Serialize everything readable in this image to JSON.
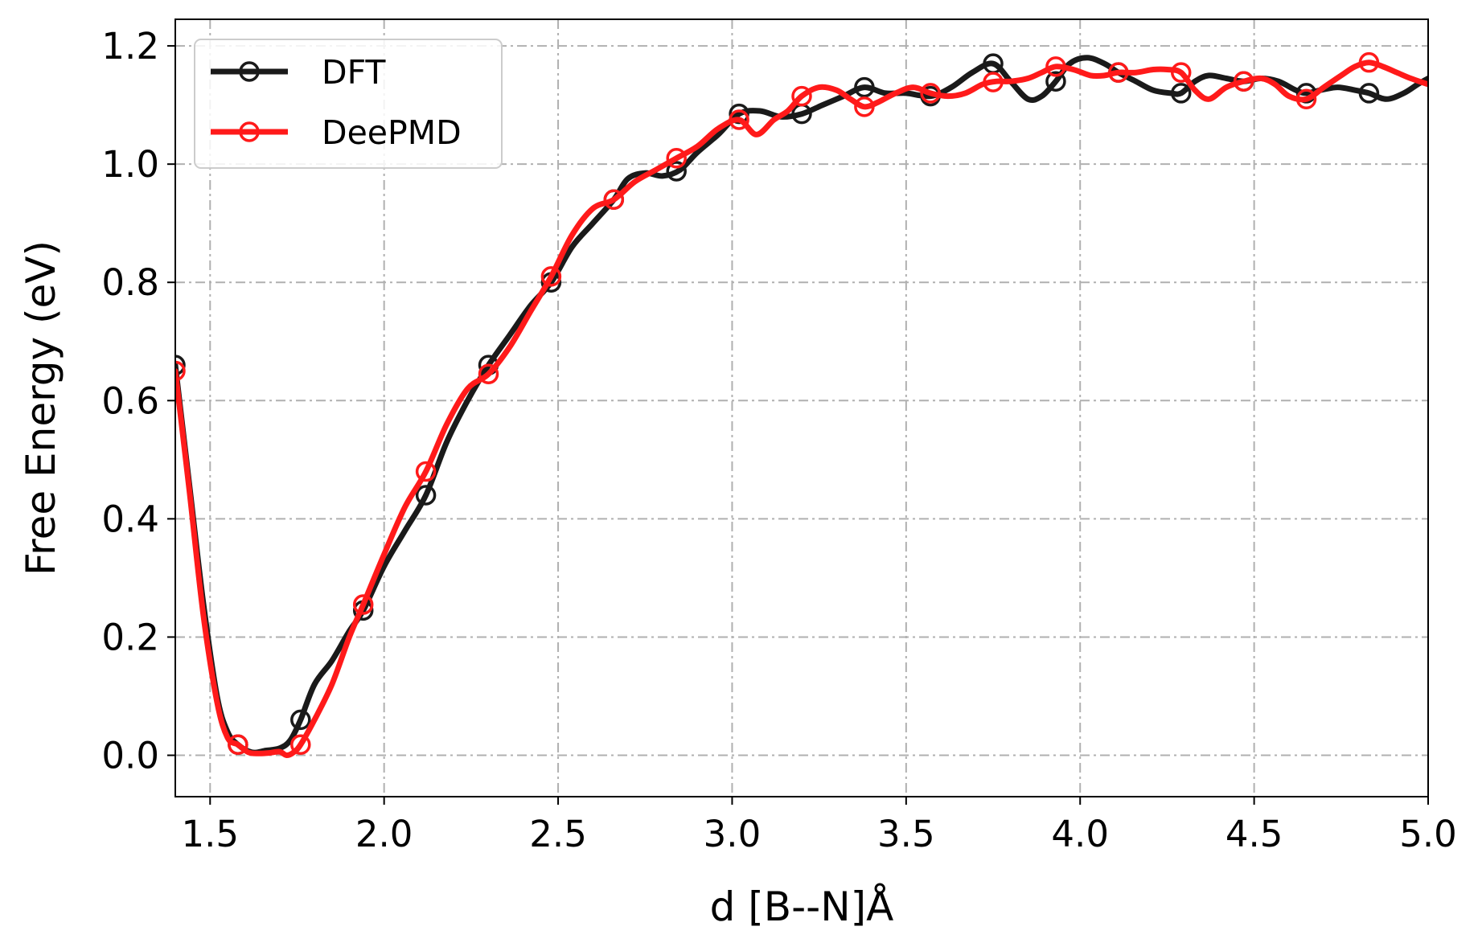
{
  "chart_data": {
    "type": "line",
    "xlabel": "d [B--N]Å",
    "ylabel": "Free Energy (eV)",
    "xlim": [
      1.4,
      5.0
    ],
    "ylim": [
      -0.07,
      1.245
    ],
    "x_ticks": [
      "1.5",
      "2.0",
      "2.5",
      "3.0",
      "3.5",
      "4.0",
      "4.5",
      "5.0"
    ],
    "y_ticks": [
      "0.0",
      "0.2",
      "0.4",
      "0.6",
      "0.8",
      "1.0",
      "1.2"
    ],
    "x_tick_values": [
      1.5,
      2.0,
      2.5,
      3.0,
      3.5,
      4.0,
      4.5,
      5.0
    ],
    "y_tick_values": [
      0.0,
      0.2,
      0.4,
      0.6,
      0.8,
      1.0,
      1.2
    ],
    "grid": true,
    "grid_style": "dash-dot",
    "legend_position": "top-left",
    "series": [
      {
        "name": "DFT",
        "color": "#1a1a1a",
        "marker": "open-circle",
        "x": [
          1.4,
          1.44,
          1.48,
          1.52,
          1.55,
          1.58,
          1.62,
          1.66,
          1.7,
          1.73,
          1.76,
          1.8,
          1.85,
          1.9,
          1.94,
          2.0,
          2.06,
          2.12,
          2.18,
          2.24,
          2.3,
          2.36,
          2.42,
          2.48,
          2.54,
          2.6,
          2.66,
          2.7,
          2.75,
          2.8,
          2.85,
          2.9,
          2.96,
          3.02,
          3.08,
          3.14,
          3.2,
          3.26,
          3.32,
          3.38,
          3.44,
          3.5,
          3.57,
          3.63,
          3.69,
          3.75,
          3.8,
          3.85,
          3.89,
          3.93,
          3.97,
          4.02,
          4.07,
          4.11,
          4.16,
          4.21,
          4.26,
          4.29,
          4.33,
          4.37,
          4.42,
          4.47,
          4.52,
          4.57,
          4.62,
          4.65,
          4.69,
          4.74,
          4.79,
          4.83,
          4.88,
          4.93,
          4.97,
          5.0
        ],
        "y": [
          0.66,
          0.46,
          0.26,
          0.1,
          0.04,
          0.018,
          0.005,
          0.008,
          0.012,
          0.025,
          0.06,
          0.12,
          0.16,
          0.21,
          0.245,
          0.32,
          0.38,
          0.44,
          0.53,
          0.6,
          0.66,
          0.71,
          0.76,
          0.8,
          0.86,
          0.9,
          0.94,
          0.975,
          0.985,
          0.98,
          0.99,
          1.02,
          1.05,
          1.085,
          1.09,
          1.08,
          1.085,
          1.1,
          1.115,
          1.13,
          1.12,
          1.12,
          1.115,
          1.13,
          1.155,
          1.17,
          1.14,
          1.11,
          1.115,
          1.14,
          1.17,
          1.18,
          1.17,
          1.155,
          1.14,
          1.125,
          1.12,
          1.12,
          1.14,
          1.15,
          1.145,
          1.14,
          1.145,
          1.14,
          1.125,
          1.12,
          1.125,
          1.13,
          1.125,
          1.12,
          1.11,
          1.12,
          1.135,
          1.145
        ]
      },
      {
        "name": "DeePMD",
        "color": "#ff1a1a",
        "marker": "open-circle",
        "x": [
          1.4,
          1.44,
          1.48,
          1.52,
          1.55,
          1.58,
          1.61,
          1.64,
          1.67,
          1.7,
          1.72,
          1.74,
          1.76,
          1.8,
          1.85,
          1.9,
          1.94,
          2.0,
          2.06,
          2.12,
          2.18,
          2.24,
          2.3,
          2.36,
          2.42,
          2.48,
          2.54,
          2.6,
          2.66,
          2.72,
          2.78,
          2.84,
          2.9,
          2.96,
          3.02,
          3.07,
          3.12,
          3.16,
          3.2,
          3.25,
          3.3,
          3.34,
          3.38,
          3.42,
          3.47,
          3.52,
          3.57,
          3.62,
          3.67,
          3.72,
          3.76,
          3.8,
          3.85,
          3.89,
          3.93,
          3.98,
          4.03,
          4.07,
          4.11,
          4.16,
          4.21,
          4.25,
          4.29,
          4.33,
          4.37,
          4.42,
          4.47,
          4.52,
          4.56,
          4.6,
          4.65,
          4.7,
          4.75,
          4.79,
          4.83,
          4.87,
          4.91,
          4.95,
          5.0
        ],
        "y": [
          0.65,
          0.45,
          0.24,
          0.09,
          0.03,
          0.018,
          0.005,
          0.003,
          0.004,
          0.006,
          0.0,
          0.005,
          0.018,
          0.06,
          0.12,
          0.2,
          0.255,
          0.34,
          0.42,
          0.48,
          0.56,
          0.62,
          0.645,
          0.69,
          0.75,
          0.81,
          0.88,
          0.925,
          0.94,
          0.97,
          0.99,
          1.01,
          1.03,
          1.06,
          1.075,
          1.05,
          1.075,
          1.09,
          1.115,
          1.13,
          1.125,
          1.11,
          1.097,
          1.105,
          1.12,
          1.13,
          1.12,
          1.115,
          1.12,
          1.135,
          1.14,
          1.14,
          1.145,
          1.155,
          1.165,
          1.16,
          1.15,
          1.15,
          1.155,
          1.155,
          1.16,
          1.16,
          1.155,
          1.125,
          1.11,
          1.13,
          1.14,
          1.145,
          1.135,
          1.115,
          1.11,
          1.13,
          1.15,
          1.165,
          1.172,
          1.165,
          1.155,
          1.145,
          1.135
        ]
      }
    ]
  }
}
